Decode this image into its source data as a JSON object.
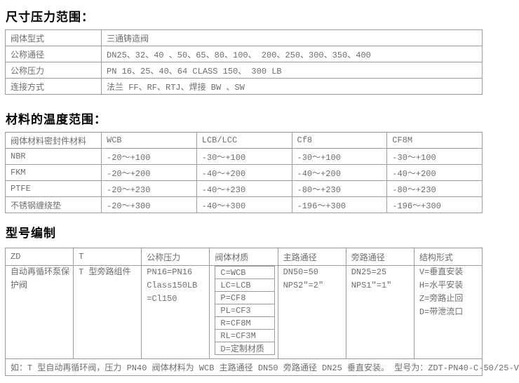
{
  "colors": {
    "heading": "#000000",
    "body_text": "#6e6e6e",
    "table_border": "#9a9a9a",
    "background": "#ffffff"
  },
  "s1": {
    "title": "尺寸压力范围：",
    "rows": [
      {
        "label": "阀体型式",
        "value": "三通铸造阀"
      },
      {
        "label": "公称通径",
        "value": "DN25、32、40 、50、65、80、100、 200、250、300、350、400"
      },
      {
        "label": "公称压力",
        "value": "PN 16、25、40、64  CLASS  150、 300 LB"
      },
      {
        "label": "连接方式",
        "value": "法兰 FF、RF、RTJ、焊接 BW 、SW"
      }
    ]
  },
  "s2": {
    "title": "材料的温度范围：",
    "headers": [
      "阀体材料密封件材料",
      "WCB",
      "LCB/LCC",
      "Cf8",
      "CF8M"
    ],
    "rows": [
      [
        "NBR",
        "-20～+100",
        "-30～+100",
        "-30～+100",
        "-30～+100"
      ],
      [
        "FKM",
        "-20～+200",
        "-40～+200",
        "-40～+200",
        "-40～+200"
      ],
      [
        "PTFE",
        "-20～+230",
        "-40～+230",
        "-80～+230",
        "-80～+230"
      ],
      [
        "不锈钢缠绕垫",
        "-20～+300",
        "-40～+300",
        "-196～+300",
        "-196～+300"
      ]
    ]
  },
  "s3": {
    "title": "型号编制",
    "headers": [
      "ZD",
      "T",
      "公称压力",
      "阀体材质",
      "主路通径",
      "旁路通径",
      "结构形式"
    ],
    "zd": "自动再循环泵保护阀",
    "t": "T 型旁路组件",
    "pressure": [
      "PN16=PN16",
      "Class150LB",
      "=Cl150"
    ],
    "materials": [
      "C=WCB",
      "LC=LCB",
      "P=CF8",
      "PL=CF3",
      "R=CF8M",
      "RL=CF3M",
      "D=定制材质"
    ],
    "main": [
      "DN50=50",
      "NPS2″=2″"
    ],
    "bypass": [
      "DN25=25",
      "NPS1″=1″"
    ],
    "structure": [
      "V=垂直安装",
      "H=水平安装",
      "Z=旁路止回",
      "D=带泄流口"
    ],
    "note": "如：T 型自动再循环阀，压力 PN40  阀体材料为 WCB  主路通径 DN50  旁路通径 DN25  垂直安装。 型号为：ZDT-PN40-C-50/25-V"
  }
}
